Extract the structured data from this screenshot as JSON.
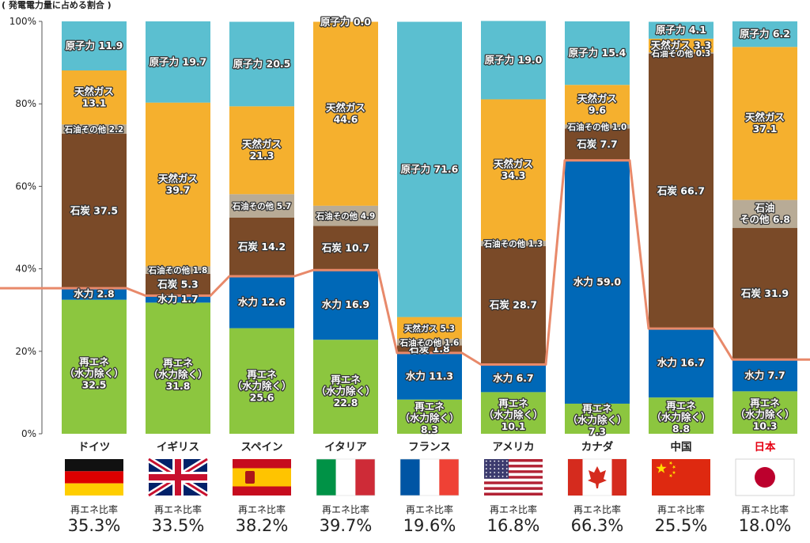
{
  "chart_data": {
    "type": "stacked_bar",
    "title": "( 発電電力量に占める割合 )",
    "ylim": [
      0,
      100
    ],
    "yticks": [
      0,
      20,
      40,
      60,
      80,
      100
    ],
    "ytick_labels": [
      "0%",
      "20%",
      "40%",
      "60%",
      "80%",
      "100%"
    ],
    "series_names": [
      "再エネ(水力除く)",
      "水力",
      "石炭",
      "石油その他",
      "天然ガス",
      "原子力"
    ],
    "colors": {
      "renew": "#8cc63f",
      "hydro": "#0068b7",
      "coal": "#7a4a28",
      "oil": "#b8ab96",
      "gas": "#f5b02e",
      "nuclear": "#5bbfd0",
      "line": "#e8896a"
    },
    "rate_label": "再エネ比率",
    "countries": [
      {
        "name": "ドイツ",
        "flag": "flag-germany",
        "rate": "35.3%",
        "rate_value": 35.3,
        "segments": [
          {
            "key": "renew",
            "value": 32.5,
            "lines": [
              "再エネ",
              "（水力除く）",
              "32.5"
            ]
          },
          {
            "key": "hydro",
            "value": 2.8,
            "lines": [
              "水力 2.8"
            ]
          },
          {
            "key": "coal",
            "value": 37.5,
            "lines": [
              "石炭 37.5"
            ]
          },
          {
            "key": "oil",
            "value": 2.2,
            "lines": [
              "石油その他 2.2"
            ],
            "small": true
          },
          {
            "key": "gas",
            "value": 13.1,
            "lines": [
              "天然ガス",
              "13.1"
            ]
          },
          {
            "key": "nuclear",
            "value": 11.9,
            "lines": [
              "原子力 11.9"
            ]
          }
        ]
      },
      {
        "name": "イギリス",
        "flag": "flag-uk",
        "rate": "33.5%",
        "rate_value": 33.5,
        "segments": [
          {
            "key": "renew",
            "value": 31.8,
            "lines": [
              "再エネ",
              "（水力除く）",
              "31.8"
            ]
          },
          {
            "key": "hydro",
            "value": 1.7,
            "lines": [
              "水力 1.7"
            ]
          },
          {
            "key": "coal",
            "value": 5.3,
            "lines": [
              "石炭 5.3"
            ]
          },
          {
            "key": "oil",
            "value": 1.8,
            "lines": [
              "石油その他 1.8"
            ],
            "small": true
          },
          {
            "key": "gas",
            "value": 39.7,
            "lines": [
              "天然ガス",
              "39.7"
            ]
          },
          {
            "key": "nuclear",
            "value": 19.7,
            "lines": [
              "原子力 19.7"
            ]
          }
        ]
      },
      {
        "name": "スペイン",
        "flag": "flag-spain",
        "rate": "38.2%",
        "rate_value": 38.2,
        "segments": [
          {
            "key": "renew",
            "value": 25.6,
            "lines": [
              "再エネ",
              "（水力除く）",
              "25.6"
            ]
          },
          {
            "key": "hydro",
            "value": 12.6,
            "lines": [
              "水力 12.6"
            ]
          },
          {
            "key": "coal",
            "value": 14.2,
            "lines": [
              "石炭 14.2"
            ]
          },
          {
            "key": "oil",
            "value": 5.7,
            "lines": [
              "石油その他 5.7"
            ],
            "small": true
          },
          {
            "key": "gas",
            "value": 21.3,
            "lines": [
              "天然ガス",
              "21.3"
            ]
          },
          {
            "key": "nuclear",
            "value": 20.5,
            "lines": [
              "原子力 20.5"
            ]
          }
        ]
      },
      {
        "name": "イタリア",
        "flag": "flag-italy",
        "rate": "39.7%",
        "rate_value": 39.7,
        "segments": [
          {
            "key": "renew",
            "value": 22.8,
            "lines": [
              "再エネ",
              "（水力除く）",
              "22.8"
            ]
          },
          {
            "key": "hydro",
            "value": 16.9,
            "lines": [
              "水力 16.9"
            ]
          },
          {
            "key": "coal",
            "value": 10.7,
            "lines": [
              "石炭 10.7"
            ]
          },
          {
            "key": "oil",
            "value": 4.9,
            "lines": [
              "石油その他 4.9"
            ],
            "small": true
          },
          {
            "key": "gas",
            "value": 44.6,
            "lines": [
              "天然ガス",
              "44.6"
            ]
          },
          {
            "key": "nuclear",
            "value": 0.0,
            "lines": [
              "原子力 0.0"
            ],
            "top_label": true
          }
        ]
      },
      {
        "name": "フランス",
        "flag": "flag-france",
        "rate": "19.6%",
        "rate_value": 19.6,
        "segments": [
          {
            "key": "renew",
            "value": 8.3,
            "lines": [
              "再エネ",
              "（水力除く）",
              "8.3"
            ]
          },
          {
            "key": "hydro",
            "value": 11.3,
            "lines": [
              "水力 11.3"
            ]
          },
          {
            "key": "coal",
            "value": 1.8,
            "lines": [
              "石炭 1.8"
            ]
          },
          {
            "key": "oil",
            "value": 1.6,
            "lines": [
              "石油その他 1.6"
            ],
            "small": true
          },
          {
            "key": "gas",
            "value": 5.3,
            "lines": [
              "天然ガス 5.3"
            ],
            "small": true
          },
          {
            "key": "nuclear",
            "value": 71.6,
            "lines": [
              "原子力 71.6"
            ]
          }
        ]
      },
      {
        "name": "アメリカ",
        "flag": "flag-usa",
        "rate": "16.8%",
        "rate_value": 16.8,
        "segments": [
          {
            "key": "renew",
            "value": 10.1,
            "lines": [
              "再エネ",
              "（水力除く）",
              "10.1"
            ]
          },
          {
            "key": "hydro",
            "value": 6.7,
            "lines": [
              "水力 6.7"
            ]
          },
          {
            "key": "coal",
            "value": 28.7,
            "lines": [
              "石炭 28.7"
            ]
          },
          {
            "key": "oil",
            "value": 1.3,
            "lines": [
              "石油その他 1.3"
            ],
            "small": true
          },
          {
            "key": "gas",
            "value": 34.3,
            "lines": [
              "天然ガス",
              "34.3"
            ]
          },
          {
            "key": "nuclear",
            "value": 19.0,
            "lines": [
              "原子力 19.0"
            ]
          }
        ]
      },
      {
        "name": "カナダ",
        "flag": "flag-canada",
        "rate": "66.3%",
        "rate_value": 66.3,
        "segments": [
          {
            "key": "renew",
            "value": 7.3,
            "lines": [
              "再エネ",
              "（水力除く）",
              "7.3"
            ]
          },
          {
            "key": "hydro",
            "value": 59.0,
            "lines": [
              "水力 59.0"
            ]
          },
          {
            "key": "coal",
            "value": 7.7,
            "lines": [
              "石炭 7.7"
            ]
          },
          {
            "key": "oil",
            "value": 1.0,
            "lines": [
              "石油その他 1.0"
            ],
            "small": true
          },
          {
            "key": "gas",
            "value": 9.6,
            "lines": [
              "天然ガス",
              "9.6"
            ]
          },
          {
            "key": "nuclear",
            "value": 15.4,
            "lines": [
              "原子力 15.4"
            ]
          }
        ]
      },
      {
        "name": "中国",
        "flag": "flag-china",
        "rate": "25.5%",
        "rate_value": 25.5,
        "segments": [
          {
            "key": "renew",
            "value": 8.8,
            "lines": [
              "再エネ",
              "（水力除く）",
              "8.8"
            ]
          },
          {
            "key": "hydro",
            "value": 16.7,
            "lines": [
              "水力 16.7"
            ]
          },
          {
            "key": "coal",
            "value": 66.7,
            "lines": [
              "石炭 66.7"
            ]
          },
          {
            "key": "oil",
            "value": 0.3,
            "lines": [
              "石油その他 0.3"
            ],
            "small": true
          },
          {
            "key": "gas",
            "value": 3.3,
            "lines": [
              "天然ガス 3.3"
            ]
          },
          {
            "key": "nuclear",
            "value": 4.1,
            "lines": [
              "原子力 4.1"
            ]
          }
        ]
      },
      {
        "name": "日本",
        "flag": "flag-japan",
        "rate": "18.0%",
        "rate_value": 18.0,
        "highlight": true,
        "segments": [
          {
            "key": "renew",
            "value": 10.3,
            "lines": [
              "再エネ",
              "（水力除く）",
              "10.3"
            ]
          },
          {
            "key": "hydro",
            "value": 7.7,
            "lines": [
              "水力 7.7"
            ]
          },
          {
            "key": "coal",
            "value": 31.9,
            "lines": [
              "石炭 31.9"
            ]
          },
          {
            "key": "oil",
            "value": 6.8,
            "lines": [
              "石油",
              "その他 6.8"
            ]
          },
          {
            "key": "gas",
            "value": 37.1,
            "lines": [
              "天然ガス",
              "37.1"
            ]
          },
          {
            "key": "nuclear",
            "value": 6.2,
            "lines": [
              "原子力 6.2"
            ]
          }
        ]
      }
    ]
  }
}
